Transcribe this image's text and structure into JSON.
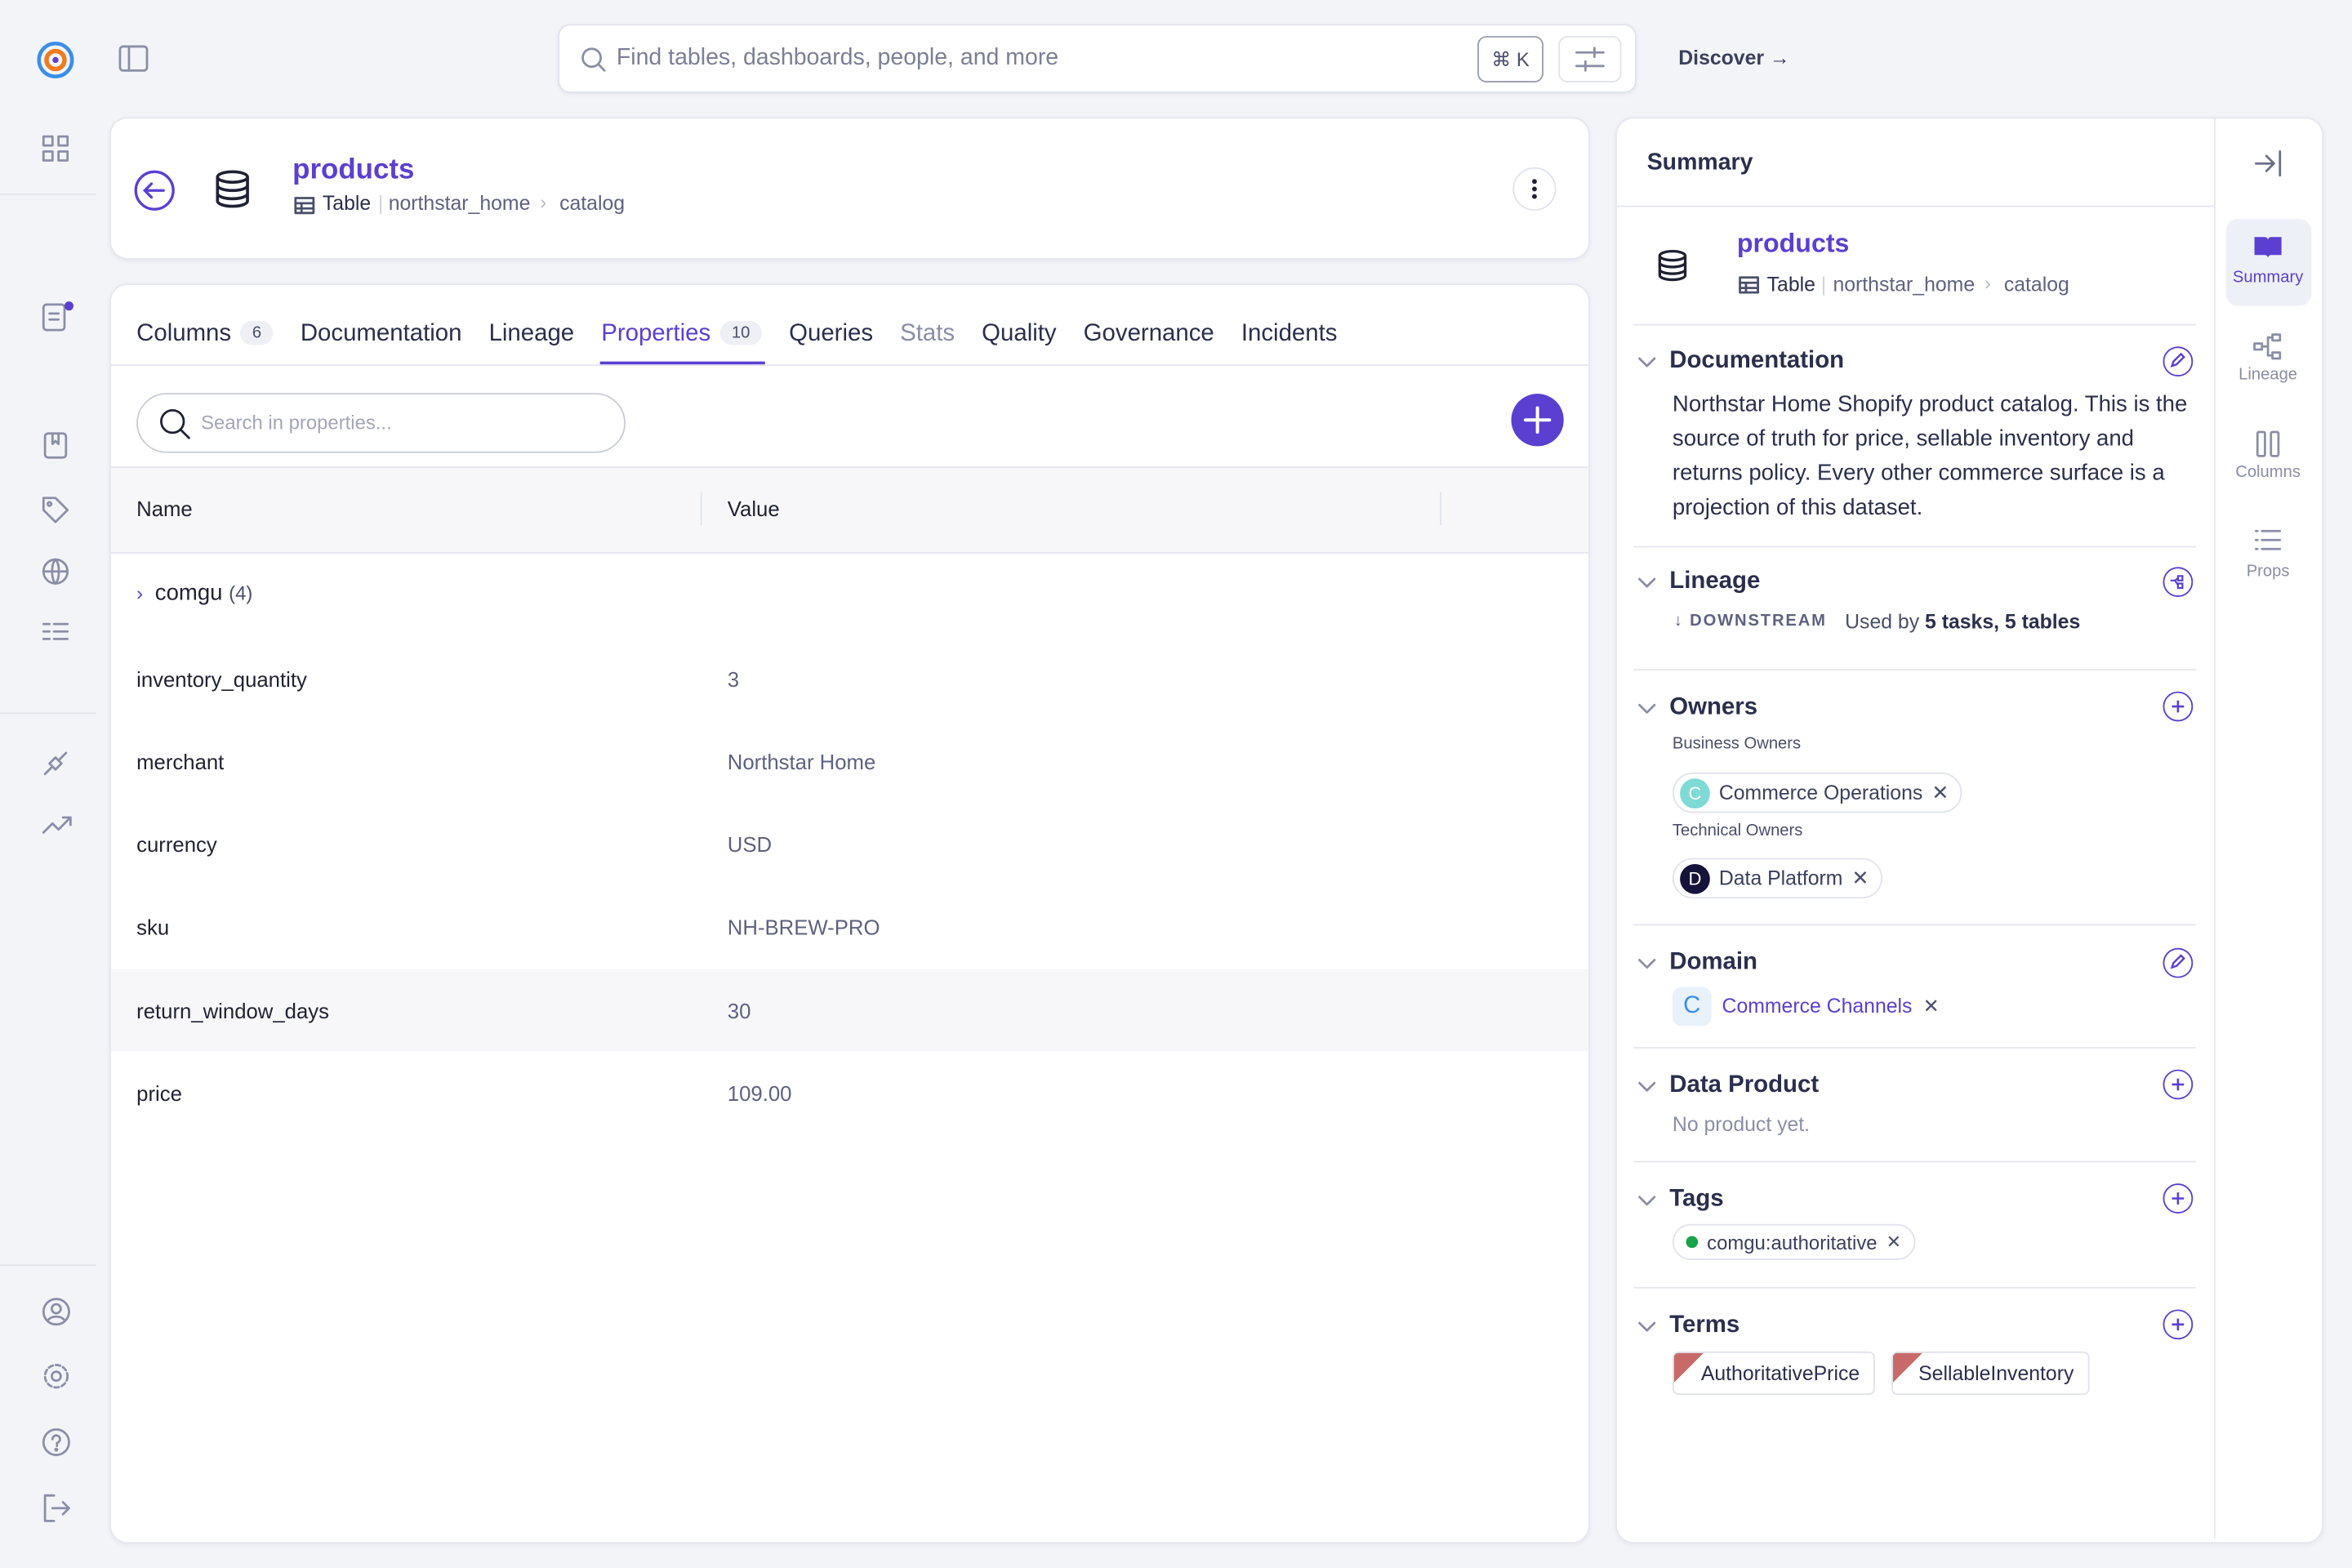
{
  "search": {
    "placeholder": "Find tables, dashboards, people, and more",
    "shortcut": "⌘ K"
  },
  "nav": {
    "discover": "Discover"
  },
  "header": {
    "title": "products",
    "type": "Table",
    "breadcrumb": [
      "northstar_home",
      "catalog"
    ]
  },
  "tabs": [
    {
      "label": "Columns",
      "count": 6
    },
    {
      "label": "Documentation"
    },
    {
      "label": "Lineage"
    },
    {
      "label": "Properties",
      "count": 10
    },
    {
      "label": "Queries"
    },
    {
      "label": "Stats"
    },
    {
      "label": "Quality"
    },
    {
      "label": "Governance"
    },
    {
      "label": "Incidents"
    }
  ],
  "properties": {
    "search_placeholder": "Search in properties...",
    "columns": [
      "Name",
      "Value"
    ],
    "group": {
      "name": "comgu",
      "count": "(4)"
    },
    "rows": [
      [
        "inventory_quantity",
        "3"
      ],
      [
        "merchant",
        "Northstar Home"
      ],
      [
        "currency",
        "USD"
      ],
      [
        "sku",
        "NH-BREW-PRO"
      ],
      [
        "return_window_days",
        "30"
      ],
      [
        "price",
        "109.00"
      ]
    ]
  },
  "summary": {
    "title": "Summary",
    "entity": {
      "title": "products",
      "type": "Table",
      "breadcrumb": [
        "northstar_home",
        "catalog"
      ]
    },
    "documentation": {
      "title": "Documentation",
      "text": "Northstar Home Shopify product catalog. This is the source of truth for price, sellable inventory and returns policy. Every other commerce surface is a projection of this dataset."
    },
    "lineage": {
      "title": "Lineage",
      "direction": "DOWNSTREAM",
      "prefix": "Used by",
      "usage": "5 tasks, 5 tables"
    },
    "owners": {
      "title": "Owners",
      "business_label": "Business Owners",
      "business": [
        {
          "initial": "C",
          "name": "Commerce Operations"
        }
      ],
      "technical_label": "Technical Owners",
      "technical": [
        {
          "initial": "D",
          "name": "Data Platform"
        }
      ]
    },
    "domain": {
      "title": "Domain",
      "initial": "C",
      "name": "Commerce Channels"
    },
    "data_product": {
      "title": "Data Product",
      "empty": "No product yet."
    },
    "tags": {
      "title": "Tags",
      "items": [
        "comgu:authoritative"
      ]
    },
    "terms": {
      "title": "Terms",
      "items": [
        "AuthoritativePrice",
        "SellableInventory"
      ]
    }
  },
  "rail": [
    "Summary",
    "Lineage",
    "Columns",
    "Props"
  ]
}
